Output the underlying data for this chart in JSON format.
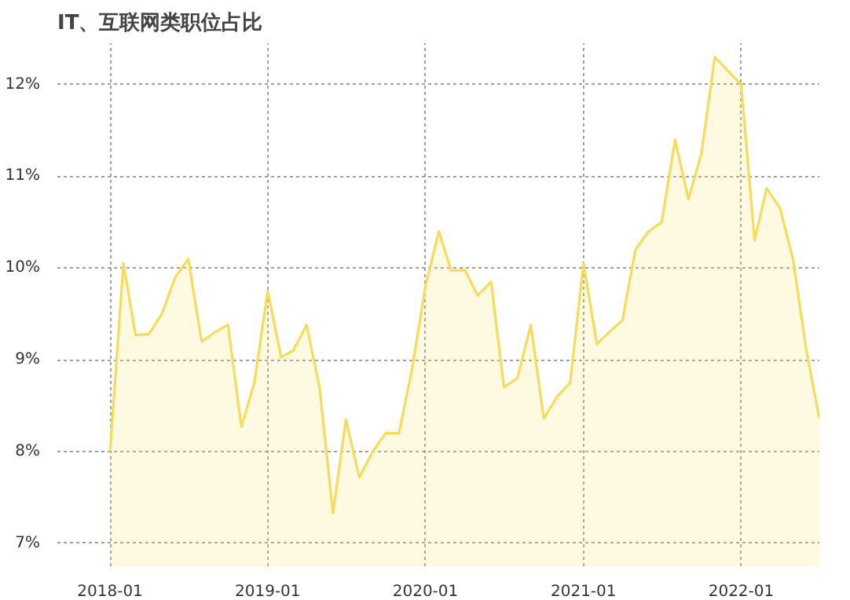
{
  "chart_data": {
    "type": "area",
    "title": "IT、互联网类职位占比",
    "x": [
      "2018-01",
      "2018-02",
      "2018-03",
      "2018-04",
      "2018-05",
      "2018-06",
      "2018-07",
      "2018-08",
      "2018-09",
      "2018-10",
      "2018-11",
      "2018-12",
      "2019-01",
      "2019-02",
      "2019-03",
      "2019-04",
      "2019-05",
      "2019-06",
      "2019-07",
      "2019-08",
      "2019-09",
      "2019-10",
      "2019-11",
      "2019-12",
      "2020-01",
      "2020-02",
      "2020-03",
      "2020-04",
      "2020-05",
      "2020-06",
      "2020-07",
      "2020-08",
      "2020-09",
      "2020-10",
      "2020-11",
      "2020-12",
      "2021-01",
      "2021-02",
      "2021-03",
      "2021-04",
      "2021-05",
      "2021-06",
      "2021-07",
      "2021-08",
      "2021-09",
      "2021-10",
      "2021-11",
      "2021-12",
      "2022-01",
      "2022-02",
      "2022-03",
      "2022-04",
      "2022-05",
      "2022-06",
      "2022-07"
    ],
    "series": [
      {
        "color": "#f7dc5a",
        "values": [
          8.0,
          10.05,
          9.27,
          9.28,
          9.5,
          9.9,
          10.1,
          9.2,
          9.3,
          9.38,
          8.27,
          8.75,
          9.75,
          9.03,
          9.1,
          9.38,
          8.7,
          7.33,
          8.35,
          7.72,
          8.0,
          8.2,
          8.2,
          8.9,
          9.8,
          10.4,
          9.97,
          9.98,
          9.7,
          9.85,
          8.7,
          8.8,
          9.38,
          8.36,
          8.6,
          8.75,
          10.05,
          9.17,
          9.3,
          9.43,
          10.2,
          10.4,
          10.5,
          11.4,
          10.75,
          11.25,
          12.3,
          12.15,
          12.0,
          10.3,
          10.87,
          10.65,
          10.1,
          9.1,
          8.36
        ]
      }
    ],
    "xlim": [
      "2017-09",
      "2022-07"
    ],
    "xticks": [
      {
        "value": "2018-01",
        "label": "2018-01"
      },
      {
        "value": "2019-01",
        "label": "2019-01"
      },
      {
        "value": "2020-01",
        "label": "2020-01"
      },
      {
        "value": "2021-01",
        "label": "2021-01"
      },
      {
        "value": "2022-01",
        "label": "2022-01"
      }
    ],
    "ylim": [
      6.75,
      12.45
    ],
    "yticks": [
      {
        "value": 7,
        "label": "7%"
      },
      {
        "value": 8,
        "label": "8%"
      },
      {
        "value": 9,
        "label": "9%"
      },
      {
        "value": 10,
        "label": "10%"
      },
      {
        "value": 11,
        "label": "11%"
      },
      {
        "value": 12,
        "label": "12%"
      }
    ],
    "grid": true
  }
}
